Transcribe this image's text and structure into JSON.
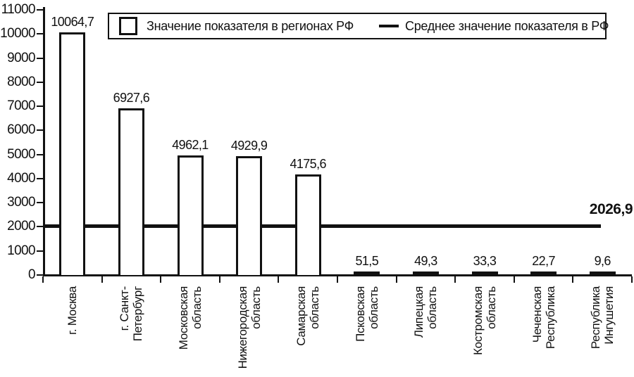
{
  "chart_data": {
    "type": "bar",
    "categories": [
      [
        "г. Москва"
      ],
      [
        "г. Санкт-",
        "Петербург"
      ],
      [
        "Московская",
        "область"
      ],
      [
        "Нижегородская",
        "область"
      ],
      [
        "Самарская",
        "область"
      ],
      [
        "Псковская",
        "область"
      ],
      [
        "Липецкая",
        "область"
      ],
      [
        "Костромская",
        "область"
      ],
      [
        "Чеченская",
        "Республика"
      ],
      [
        "Республика",
        "Ингушетия"
      ]
    ],
    "values": [
      10064.7,
      6927.6,
      4962.1,
      4929.9,
      4175.6,
      51.5,
      49.3,
      33.3,
      22.7,
      9.6
    ],
    "value_labels": [
      "10064,7",
      "6927,6",
      "4962,1",
      "4929,9",
      "4175,6",
      "51,5",
      "49,3",
      "33,3",
      "22,7",
      "9,6"
    ],
    "average": {
      "value": 2026.9,
      "label": "2026,9"
    },
    "y_axis": {
      "min": 0,
      "max": 11000,
      "step": 1000,
      "tick_labels": [
        "0",
        "1000",
        "2000",
        "3000",
        "4000",
        "5000",
        "6000",
        "7000",
        "8000",
        "9000",
        "10000",
        "11000"
      ]
    },
    "legend": [
      {
        "swatch": "bar-outline",
        "label": "Значение показателя в регионах РФ"
      },
      {
        "swatch": "average-line",
        "label": "Среднее значение показателя в РФ"
      }
    ],
    "colors": {
      "bar_fill": "#ffffff",
      "ink": "#111111"
    },
    "grid": false,
    "legend_position": "top"
  }
}
